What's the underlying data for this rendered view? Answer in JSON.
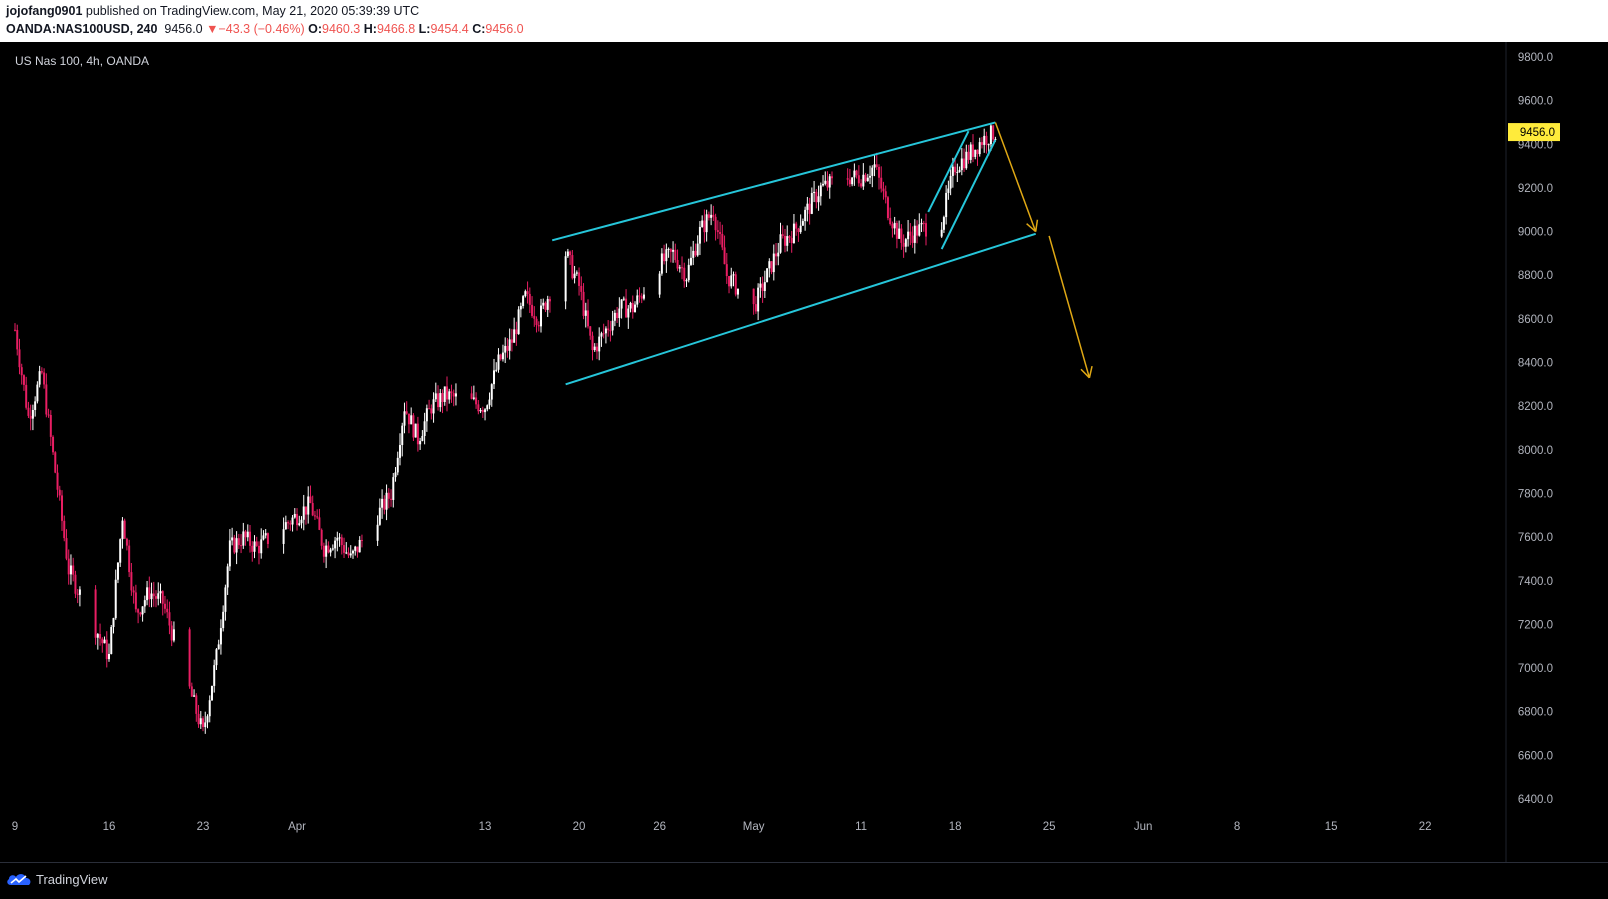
{
  "header": {
    "publisher": "jojofang0901",
    "published_text": " published on TradingView.com, May 21, 2020 05:39:39 UTC",
    "symbol": "OANDA:NAS100USD, 240",
    "last": "9456.0",
    "change": "▼−43.3 (−0.46%)",
    "o_label": "O:",
    "o_value": "9460.3",
    "h_label": "H:",
    "h_value": "9466.8",
    "l_label": "L:",
    "l_value": "9454.4",
    "c_label": "C:",
    "c_value": "9456.0"
  },
  "legend": {
    "title": "US Nas 100, 4h, OANDA"
  },
  "footer": {
    "brand": "TradingView"
  },
  "chart_data": {
    "type": "candlestick",
    "title": "US Nas 100, 4h, OANDA",
    "ylim": [
      6400,
      9800
    ],
    "y_ticks": [
      "9800.0",
      "9600.0",
      "9400.0",
      "9200.0",
      "9000.0",
      "8800.0",
      "8600.0",
      "8400.0",
      "8200.0",
      "8000.0",
      "7800.0",
      "7600.0",
      "7400.0",
      "7200.0",
      "7000.0",
      "6800.0",
      "6600.0",
      "6400.0"
    ],
    "x_ticks": [
      "9",
      "16",
      "23",
      "Apr",
      "13",
      "20",
      "26",
      "May",
      "11",
      "18",
      "25",
      "Jun",
      "8",
      "15",
      "22"
    ],
    "last_price": "9456.0",
    "colors": {
      "up": "#ffffff",
      "down": "#e91e63",
      "background": "#000000",
      "channel": "#26c6da",
      "projection": "#e0a814",
      "price_tag": "#ffeb3b"
    },
    "grid": false,
    "price_path": [
      [
        "2020-03-09",
        8550
      ],
      [
        "2020-03-10",
        8150
      ],
      [
        "2020-03-11",
        8350
      ],
      [
        "2020-03-12",
        7900
      ],
      [
        "2020-03-13",
        7450
      ],
      [
        "2020-03-16",
        7050
      ],
      [
        "2020-03-17",
        7700
      ],
      [
        "2020-03-18",
        7250
      ],
      [
        "2020-03-19",
        7350
      ],
      [
        "2020-03-20",
        7300
      ],
      [
        "2020-03-23",
        6700
      ],
      [
        "2020-03-24",
        7050
      ],
      [
        "2020-03-25",
        7550
      ],
      [
        "2020-03-26",
        7600
      ],
      [
        "2020-03-27",
        7550
      ],
      [
        "2020-03-30",
        7700
      ],
      [
        "2020-03-31",
        7750
      ],
      [
        "2020-04-01",
        7550
      ],
      [
        "2020-04-02",
        7600
      ],
      [
        "2020-04-03",
        7500
      ],
      [
        "2020-04-06",
        7800
      ],
      [
        "2020-04-07",
        8200
      ],
      [
        "2020-04-08",
        8050
      ],
      [
        "2020-04-09",
        8200
      ],
      [
        "2020-04-10",
        8250
      ],
      [
        "2020-04-13",
        8200
      ],
      [
        "2020-04-14",
        8400
      ],
      [
        "2020-04-15",
        8500
      ],
      [
        "2020-04-16",
        8700
      ],
      [
        "2020-04-17",
        8600
      ],
      [
        "2020-04-19",
        8900
      ],
      [
        "2020-04-20",
        8750
      ],
      [
        "2020-04-21",
        8450
      ],
      [
        "2020-04-22",
        8550
      ],
      [
        "2020-04-23",
        8650
      ],
      [
        "2020-04-24",
        8650
      ],
      [
        "2020-04-26",
        8850
      ],
      [
        "2020-04-27",
        8900
      ],
      [
        "2020-04-28",
        8800
      ],
      [
        "2020-04-29",
        9000
      ],
      [
        "2020-04-30",
        9100
      ],
      [
        "2020-05-01",
        8800
      ],
      [
        "2020-05-03",
        8650
      ],
      [
        "2020-05-04",
        8800
      ],
      [
        "2020-05-05",
        8950
      ],
      [
        "2020-05-06",
        9000
      ],
      [
        "2020-05-07",
        9100
      ],
      [
        "2020-05-08",
        9200
      ],
      [
        "2020-05-10",
        9250
      ],
      [
        "2020-05-11",
        9250
      ],
      [
        "2020-05-12",
        9300
      ],
      [
        "2020-05-13",
        9100
      ],
      [
        "2020-05-14",
        8950
      ],
      [
        "2020-05-15",
        9000
      ],
      [
        "2020-05-17",
        9050
      ],
      [
        "2020-05-18",
        9300
      ],
      [
        "2020-05-19",
        9350
      ],
      [
        "2020-05-20",
        9420
      ],
      [
        "2020-05-21",
        9456
      ]
    ],
    "drawings": {
      "channel_upper": [
        [
          "2020-04-18",
          8960
        ],
        [
          "2020-05-21",
          9500
        ]
      ],
      "channel_lower": [
        [
          "2020-04-19",
          8300
        ],
        [
          "2020-05-24",
          8990
        ]
      ],
      "wedge_upper": [
        [
          "2020-05-16",
          9090
        ],
        [
          "2020-05-19",
          9460
        ]
      ],
      "wedge_lower": [
        [
          "2020-05-17",
          8920
        ],
        [
          "2020-05-21",
          9420
        ]
      ],
      "projection_1": [
        [
          "2020-05-21",
          9500
        ],
        [
          "2020-05-24",
          9000
        ]
      ],
      "projection_2": [
        [
          "2020-05-25",
          8980
        ],
        [
          "2020-05-28",
          8330
        ]
      ]
    }
  }
}
